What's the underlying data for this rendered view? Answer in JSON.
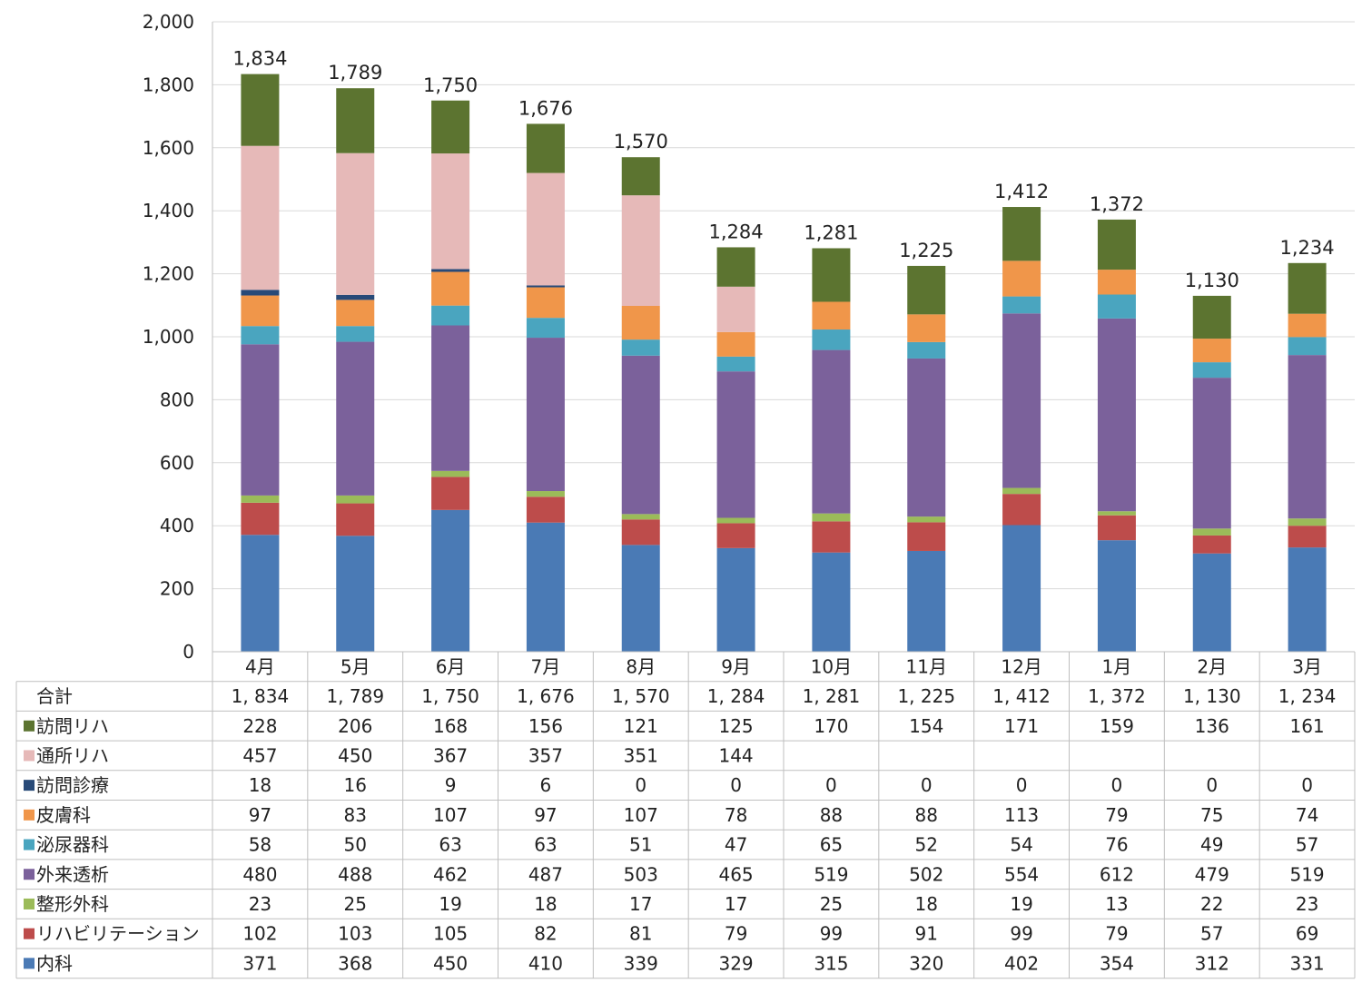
{
  "chart_data": {
    "type": "bar",
    "stacked": true,
    "categories": [
      "4月",
      "5月",
      "6月",
      "7月",
      "8月",
      "9月",
      "10月",
      "11月",
      "12月",
      "1月",
      "2月",
      "3月"
    ],
    "ylim": [
      0,
      2000
    ],
    "yticks": [
      0,
      200,
      400,
      600,
      800,
      1000,
      1200,
      1400,
      1600,
      1800,
      2000
    ],
    "ytick_labels": [
      "0",
      "200",
      "400",
      "600",
      "800",
      "1,000",
      "1,200",
      "1,400",
      "1,600",
      "1,800",
      "2,000"
    ],
    "grid": true,
    "legend": "table-left",
    "totals": {
      "label": "合計",
      "display": [
        "1,834",
        "1,789",
        "1,750",
        "1,676",
        "1,570",
        "1,284",
        "1,281",
        "1,225",
        "1,412",
        "1,372",
        "1,130",
        "1,234"
      ],
      "table_display": [
        "1, 834",
        "1, 789",
        "1, 750",
        "1, 676",
        "1, 570",
        "1, 284",
        "1, 281",
        "1, 225",
        "1, 412",
        "1, 372",
        "1, 130",
        "1, 234"
      ]
    },
    "series": [
      {
        "name": "内科",
        "color": "#4a7ab5",
        "values": [
          371,
          368,
          450,
          410,
          339,
          329,
          315,
          320,
          402,
          354,
          312,
          331
        ]
      },
      {
        "name": "リハビリテーション",
        "color": "#bd4c4b",
        "values": [
          102,
          103,
          105,
          82,
          81,
          79,
          99,
          91,
          99,
          79,
          57,
          69
        ]
      },
      {
        "name": "整形外科",
        "color": "#9bbb59",
        "values": [
          23,
          25,
          19,
          18,
          17,
          17,
          25,
          18,
          19,
          13,
          22,
          23
        ]
      },
      {
        "name": "外来透析",
        "color": "#7b619b",
        "values": [
          480,
          488,
          462,
          487,
          503,
          465,
          519,
          502,
          554,
          612,
          479,
          519
        ]
      },
      {
        "name": "泌尿器科",
        "color": "#4aa5bf",
        "values": [
          58,
          50,
          63,
          63,
          51,
          47,
          65,
          52,
          54,
          76,
          49,
          57
        ]
      },
      {
        "name": "皮膚科",
        "color": "#f0964a",
        "values": [
          97,
          83,
          107,
          97,
          107,
          78,
          88,
          88,
          113,
          79,
          75,
          74
        ]
      },
      {
        "name": "訪問診療",
        "color": "#284a78",
        "values": [
          18,
          16,
          9,
          6,
          0,
          0,
          0,
          0,
          0,
          0,
          0,
          0
        ]
      },
      {
        "name": "通所リハ",
        "color": "#e6b9b8",
        "values": [
          457,
          450,
          367,
          357,
          351,
          144,
          null,
          null,
          null,
          null,
          null,
          null
        ]
      },
      {
        "name": "訪問リハ",
        "color": "#5c7430",
        "values": [
          228,
          206,
          168,
          156,
          121,
          125,
          170,
          154,
          171,
          159,
          136,
          161
        ]
      }
    ],
    "table_row_order": [
      "合計",
      "訪問リハ",
      "通所リハ",
      "訪問診療",
      "皮膚科",
      "泌尿器科",
      "外来透析",
      "整形外科",
      "リハビリテーション",
      "内科"
    ]
  }
}
